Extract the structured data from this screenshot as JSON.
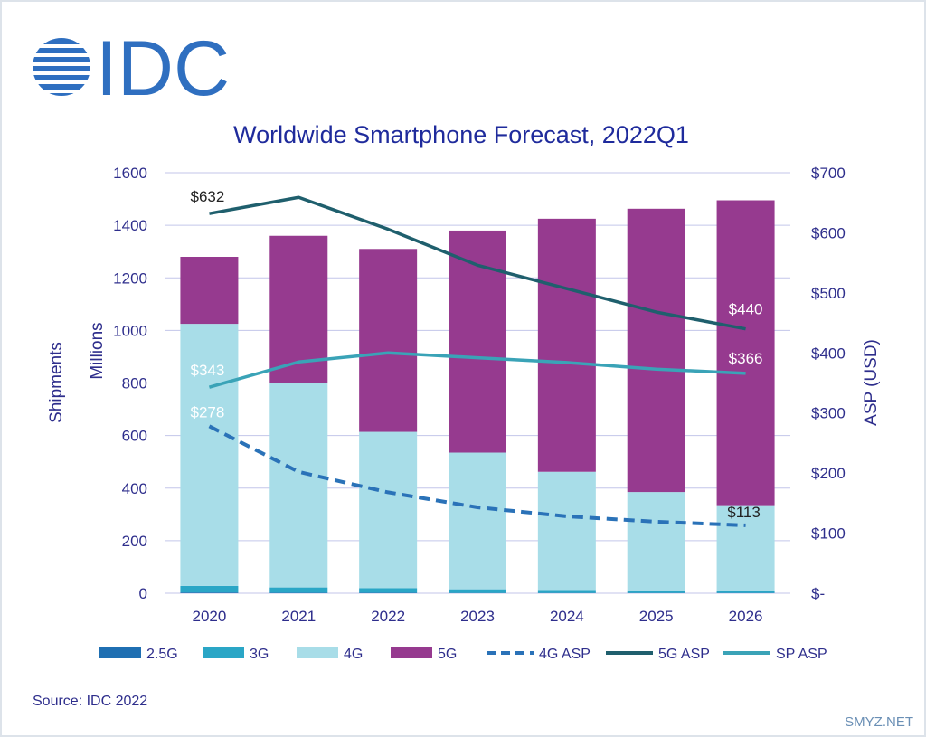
{
  "brand": {
    "name": "IDC",
    "color": "#2f6fc0"
  },
  "chart_data": {
    "type": "bar",
    "stacked": true,
    "title": "Worldwide Smartphone Forecast, 2022Q1",
    "categories": [
      "2020",
      "2021",
      "2022",
      "2023",
      "2024",
      "2025",
      "2026"
    ],
    "y_left": {
      "label_line1": "Shipments",
      "label_line2": "Millions",
      "ylim": [
        0,
        1600
      ],
      "ticks": [
        0,
        200,
        400,
        600,
        800,
        1000,
        1200,
        1400,
        1600
      ],
      "tick_labels": [
        "0",
        "200",
        "400",
        "600",
        "800",
        "1000",
        "1200",
        "1400",
        "1600"
      ]
    },
    "y_right": {
      "label": "ASP (USD)",
      "ylim": [
        0,
        700
      ],
      "ticks": [
        0,
        100,
        200,
        300,
        400,
        500,
        600,
        700
      ],
      "tick_labels": [
        "$-",
        "$100",
        "$200",
        "$300",
        "$400",
        "$500",
        "$600",
        "$700"
      ]
    },
    "grid": true,
    "legend_position": "bottom",
    "bar_series": [
      {
        "name": "2.5G",
        "color": "#1f6fb2",
        "values": [
          3,
          2,
          2,
          1,
          1,
          1,
          1
        ]
      },
      {
        "name": "3G",
        "color": "#2aa6c6",
        "values": [
          25,
          20,
          17,
          14,
          11,
          10,
          9
        ]
      },
      {
        "name": "4G",
        "color": "#a8dde8",
        "values": [
          997,
          778,
          595,
          520,
          450,
          374,
          325
        ]
      },
      {
        "name": "5G",
        "color": "#963a8f",
        "values": [
          255,
          560,
          696,
          845,
          963,
          1078,
          1160
        ]
      }
    ],
    "line_series": [
      {
        "name": "4G ASP",
        "color": "#2a72b8",
        "dashed": true,
        "axis": "right",
        "values": [
          278,
          202,
          168,
          143,
          128,
          119,
          113
        ]
      },
      {
        "name": "5G ASP",
        "color": "#1f5f6d",
        "dashed": false,
        "axis": "right",
        "values": [
          632,
          659,
          606,
          546,
          507,
          468,
          440
        ]
      },
      {
        "name": "SP ASP",
        "color": "#3aa3b7",
        "dashed": false,
        "axis": "right",
        "values": [
          343,
          385,
          400,
          392,
          384,
          373,
          366
        ]
      }
    ],
    "data_labels": [
      "$632",
      "$343",
      "$278",
      "$440",
      "$366",
      "$113"
    ]
  },
  "footer": {
    "source": "Source: IDC 2022",
    "watermark": "SMYZ.NET"
  }
}
